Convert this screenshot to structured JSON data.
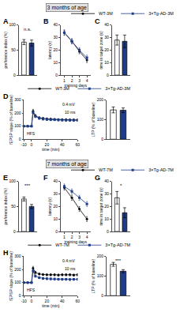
{
  "headers": [
    "3 months of age",
    "7 months of age"
  ],
  "chart_data": [
    {
      "panel": "A",
      "type": "bar",
      "y_label": "preference index (%)",
      "categories": [
        "WT-3M",
        "3×Tg-AD-3M"
      ],
      "values": [
        66,
        64
      ],
      "errors": [
        5,
        6
      ],
      "colors": [
        "#ffffff",
        "#1f3c88"
      ],
      "ylim": [
        0,
        100
      ],
      "yticks": [
        0,
        50,
        100
      ],
      "tick_labels": "y",
      "annotations": [
        "n.s."
      ]
    },
    {
      "panel": "B",
      "type": "line",
      "x": [
        1,
        2,
        3,
        4
      ],
      "xlim": [
        0.5,
        4.5
      ],
      "xticks": [
        1,
        2,
        3,
        4
      ],
      "x_label": "training days",
      "y_label": "latency (s)",
      "ylim": [
        0,
        40
      ],
      "yticks": [
        0,
        10,
        20,
        30,
        40
      ],
      "legend": "top",
      "series": [
        {
          "name": "WT-3M",
          "color": "#000000",
          "marker": "circle",
          "values": [
            34,
            27,
            19,
            12
          ],
          "errors": [
            2,
            2,
            2,
            2
          ]
        },
        {
          "name": "3×Tg-AD-3M",
          "color": "#1f3c88",
          "marker": "square",
          "values": [
            34,
            27,
            20,
            14
          ],
          "errors": [
            2,
            2,
            2,
            2
          ]
        }
      ]
    },
    {
      "panel": "C",
      "type": "bar",
      "y_label": "time in target zone (s)",
      "categories": [
        "WT-3M",
        "3×Tg-AD-3M"
      ],
      "values": [
        28,
        27
      ],
      "errors": [
        4,
        5
      ],
      "colors": [
        "#ffffff",
        "#1f3c88"
      ],
      "ylim": [
        0,
        40
      ],
      "yticks": [
        0,
        10,
        20,
        30,
        40
      ],
      "tick_labels": "y"
    },
    {
      "panel": "D",
      "type": "line",
      "x": [
        -10,
        -5,
        0,
        2,
        5,
        10,
        15,
        20,
        25,
        30,
        35,
        40,
        45,
        50,
        55,
        60
      ],
      "xlim": [
        -10,
        60
      ],
      "xticks": [
        -10,
        0,
        20,
        40,
        60
      ],
      "x_label": "time (min)",
      "y_label": "fEPSP slope (% of baseline)",
      "ylim": [
        0,
        300
      ],
      "yticks": [
        0,
        100,
        200,
        300
      ],
      "legend": "top",
      "annotations": [
        "HFS",
        "0.4 mV",
        "10 ms"
      ],
      "series": [
        {
          "name": "WT-3M",
          "color": "#000000",
          "marker": "circle",
          "values": [
            100,
            100,
            100,
            215,
            180,
            165,
            160,
            156,
            155,
            152,
            150,
            150,
            150,
            148,
            148,
            148
          ],
          "errors": [
            3,
            3,
            3,
            15,
            10,
            8,
            8,
            8,
            8,
            8,
            8,
            8,
            8,
            8,
            8,
            8
          ]
        },
        {
          "name": "3×Tg-AD-3M",
          "color": "#1f3c88",
          "marker": "square",
          "values": [
            100,
            100,
            100,
            205,
            175,
            160,
            155,
            152,
            150,
            150,
            148,
            147,
            146,
            146,
            145,
            145
          ],
          "errors": [
            3,
            3,
            3,
            15,
            10,
            8,
            8,
            8,
            8,
            8,
            8,
            8,
            8,
            8,
            8,
            8
          ]
        }
      ]
    },
    {
      "type": "bar",
      "y_label": "LTP (% of baseline)",
      "categories": [
        "WT-3M",
        "3×Tg-AD-3M"
      ],
      "values": [
        150,
        148
      ],
      "errors": [
        15,
        12
      ],
      "colors": [
        "#ffffff",
        "#1f3c88"
      ],
      "ylim": [
        0,
        200
      ],
      "yticks": [
        0,
        100,
        200
      ],
      "tick_labels": "y"
    },
    {
      "panel": "E",
      "type": "bar",
      "y_label": "preference index (%)",
      "categories": [
        "WT-7M",
        "3×Tg-AD-7M"
      ],
      "values": [
        65,
        50
      ],
      "errors": [
        4,
        4
      ],
      "colors": [
        "#ffffff",
        "#1f3c88"
      ],
      "ylim": [
        0,
        100
      ],
      "yticks": [
        0,
        50,
        100
      ],
      "tick_labels": "y",
      "annotations": [
        "***"
      ]
    },
    {
      "panel": "F",
      "type": "line",
      "x": [
        1,
        2,
        3,
        4
      ],
      "xlim": [
        0.5,
        4.5
      ],
      "xticks": [
        1,
        2,
        3,
        4
      ],
      "x_label": "training days",
      "y_label": "latency (s)",
      "ylim": [
        0,
        40
      ],
      "yticks": [
        0,
        10,
        20,
        30,
        40
      ],
      "legend": "top",
      "series": [
        {
          "name": "WT-7M",
          "color": "#000000",
          "marker": "circle",
          "values": [
            35,
            27,
            18,
            10
          ],
          "errors": [
            2,
            2,
            2,
            2
          ]
        },
        {
          "name": "3×Tg-AD-7M",
          "color": "#1f3c88",
          "marker": "square",
          "values": [
            36,
            32,
            27,
            22
          ],
          "errors": [
            2,
            2,
            2,
            2
          ]
        }
      ]
    },
    {
      "panel": "G",
      "type": "bar",
      "y_label": "time in target zone (s)",
      "categories": [
        "WT-7M",
        "3×Tg-AD-7M"
      ],
      "values": [
        27,
        15
      ],
      "errors": [
        5,
        4
      ],
      "colors": [
        "#ffffff",
        "#1f3c88"
      ],
      "ylim": [
        0,
        40
      ],
      "yticks": [
        0,
        10,
        20,
        30,
        40
      ],
      "tick_labels": "y",
      "annotations": [
        "*"
      ]
    },
    {
      "panel": "H",
      "type": "line",
      "x": [
        -10,
        -5,
        0,
        2,
        5,
        10,
        15,
        20,
        25,
        30,
        35,
        40,
        45,
        50,
        55,
        60
      ],
      "xlim": [
        -10,
        60
      ],
      "xticks": [
        -10,
        0,
        20,
        40,
        60
      ],
      "x_label": "time (min)",
      "y_label": "fEPSP slope (% of baseline)",
      "ylim": [
        0,
        300
      ],
      "yticks": [
        0,
        100,
        200,
        300
      ],
      "legend": "top",
      "annotations": [
        "HFS",
        "0.4 mV",
        "10 ms"
      ],
      "series": [
        {
          "name": "WT-7M",
          "color": "#000000",
          "marker": "circle",
          "values": [
            100,
            100,
            100,
            210,
            178,
            166,
            162,
            160,
            160,
            160,
            158,
            160,
            160,
            160,
            158,
            160
          ],
          "errors": [
            3,
            3,
            3,
            15,
            10,
            8,
            8,
            8,
            8,
            8,
            8,
            8,
            8,
            8,
            8,
            8
          ]
        },
        {
          "name": "3×Tg-AD-7M",
          "color": "#1f3c88",
          "marker": "square",
          "values": [
            100,
            100,
            100,
            190,
            150,
            138,
            132,
            130,
            128,
            127,
            126,
            125,
            125,
            124,
            125,
            125
          ],
          "errors": [
            3,
            3,
            3,
            15,
            10,
            8,
            8,
            8,
            8,
            8,
            8,
            8,
            8,
            8,
            8,
            8
          ]
        }
      ]
    },
    {
      "type": "bar",
      "y_label": "LTP (% of baseline)",
      "categories": [
        "WT-7M",
        "3×Tg-AD-7M"
      ],
      "values": [
        160,
        125
      ],
      "errors": [
        10,
        8
      ],
      "colors": [
        "#ffffff",
        "#1f3c88"
      ],
      "ylim": [
        0,
        200
      ],
      "yticks": [
        0,
        100,
        200
      ],
      "tick_labels": "y",
      "annotations": [
        "***"
      ]
    }
  ]
}
